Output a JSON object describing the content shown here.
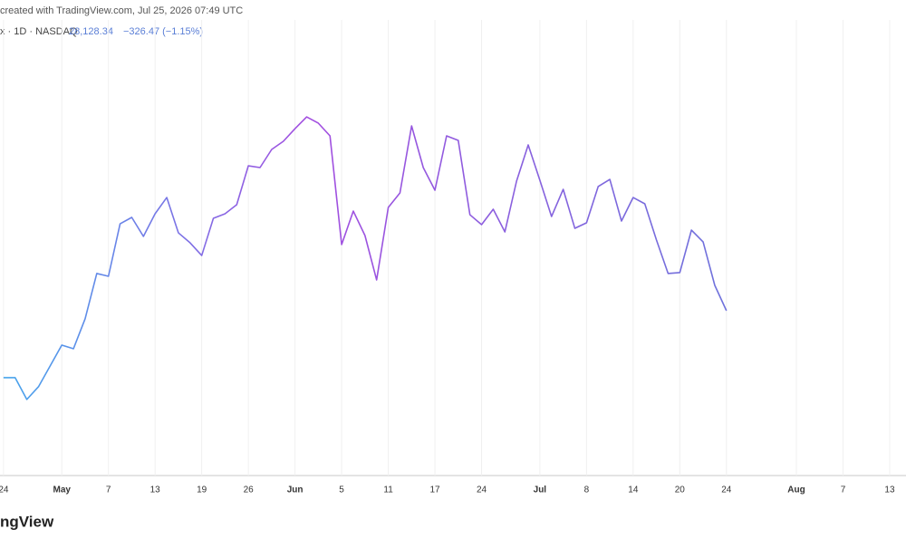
{
  "chart_data": {
    "type": "line",
    "attribution": "created with TradingView.com, Jul 25, 2026 07:49 UTC",
    "symbol_line": "x · 1D · NASDAQ",
    "price": "28,128.34",
    "change": "−326.47 (−1.15%)",
    "logo": "ngView",
    "x": [
      0,
      1,
      2,
      3,
      4,
      5,
      6,
      7,
      8,
      9,
      10,
      11,
      12,
      13,
      14,
      15,
      16,
      17,
      18,
      19,
      20,
      21,
      22,
      23,
      24,
      25,
      26,
      27,
      28,
      29,
      30,
      31,
      32,
      33,
      34,
      35,
      36,
      37,
      38,
      39,
      40,
      41,
      42,
      43,
      44,
      45,
      46,
      47,
      48,
      49,
      50,
      51,
      52,
      53,
      54,
      55,
      56,
      57,
      58,
      59,
      60,
      61,
      62
    ],
    "values": [
      27300,
      27300,
      27031,
      27188,
      27445,
      27703,
      27658,
      28028,
      28588,
      28554,
      29203,
      29282,
      29047,
      29327,
      29528,
      29091,
      28968,
      28811,
      29271,
      29327,
      29439,
      29920,
      29898,
      30122,
      30223,
      30379,
      30525,
      30447,
      30290,
      28946,
      29360,
      29058,
      28509,
      29405,
      29584,
      30413,
      29898,
      29618,
      30290,
      30234,
      29315,
      29192,
      29383,
      29103,
      29730,
      30178,
      29741,
      29293,
      29629,
      29147,
      29215,
      29663,
      29752,
      29237,
      29528,
      29450,
      29002,
      28588,
      28599,
      29125,
      28979,
      28442,
      28128.34
    ],
    "line_colors": [
      "#45a6ec",
      "#a34ee0",
      "#6f72dc"
    ],
    "xlim": [
      -0.3,
      77.4
    ],
    "ylim": [
      26090,
      31970
    ],
    "xticks": [
      {
        "value": 0,
        "label": "24"
      },
      {
        "value": 5,
        "label": "May"
      },
      {
        "value": 9,
        "label": "7"
      },
      {
        "value": 13,
        "label": "13"
      },
      {
        "value": 17,
        "label": "19"
      },
      {
        "value": 21,
        "label": "26"
      },
      {
        "value": 25,
        "label": "Jun"
      },
      {
        "value": 29,
        "label": "5"
      },
      {
        "value": 33,
        "label": "11"
      },
      {
        "value": 37,
        "label": "17"
      },
      {
        "value": 41,
        "label": "24"
      },
      {
        "value": 46,
        "label": "Jul"
      },
      {
        "value": 50,
        "label": "8"
      },
      {
        "value": 54,
        "label": "14"
      },
      {
        "value": 58,
        "label": "20"
      },
      {
        "value": 62,
        "label": "24"
      },
      {
        "value": 68,
        "label": "Aug"
      },
      {
        "value": 72,
        "label": "7"
      },
      {
        "value": 76,
        "label": "13"
      }
    ],
    "grid": true
  }
}
